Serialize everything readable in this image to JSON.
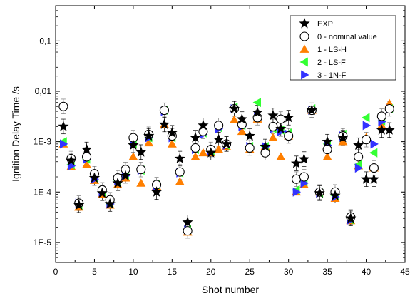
{
  "chart_data": {
    "type": "scatter",
    "xlabel": "Shot number",
    "ylabel": "Ignition Delay Time /s",
    "xlim": [
      0,
      45
    ],
    "ylim": [
      4e-06,
      0.5
    ],
    "yscale": "log",
    "xticks": [
      0,
      5,
      10,
      15,
      20,
      25,
      30,
      35,
      40,
      45
    ],
    "yticks": [
      {
        "value": 1e-05,
        "label": "1E-5"
      },
      {
        "value": 0.0001,
        "label": "1E-4"
      },
      {
        "value": 0.001,
        "label": "1E-3"
      },
      {
        "value": 0.01,
        "label": "0,01"
      },
      {
        "value": 0.1,
        "label": "0,1"
      }
    ],
    "grid": false,
    "legend_position": "top-right",
    "series": [
      {
        "name": "EXP",
        "marker": "star",
        "color": "#000000",
        "error_bars": true,
        "x": [
          1,
          2,
          3,
          4,
          5,
          6,
          7,
          8,
          9,
          10,
          11,
          12,
          13,
          14,
          15,
          16,
          17,
          18,
          19,
          20,
          21,
          22,
          23,
          24,
          25,
          26,
          27,
          28,
          29,
          30,
          31,
          32,
          33,
          34,
          35,
          36,
          37,
          38,
          39,
          40,
          41,
          42,
          43
        ],
        "y": [
          0.002,
          0.00042,
          5.5e-05,
          0.0007,
          0.00019,
          9.5e-05,
          5.8e-05,
          0.00015,
          0.00021,
          0.00085,
          0.00062,
          0.0013,
          0.0001,
          0.0022,
          0.0015,
          0.00046,
          2.5e-05,
          0.0012,
          0.0021,
          0.0006,
          0.0011,
          0.0009,
          0.0045,
          0.0028,
          0.0013,
          0.0038,
          0.0008,
          0.0033,
          0.0018,
          0.003,
          0.00037,
          0.00045,
          0.0042,
          9.5e-05,
          0.001,
          8.5e-05,
          0.0012,
          3e-05,
          0.00085,
          0.00018,
          0.00018,
          0.0017,
          0.0017
        ]
      },
      {
        "name": "0 - nominal value",
        "marker": "circle-open",
        "color": "#000000",
        "error_bars": true,
        "x": [
          1,
          2,
          3,
          4,
          5,
          6,
          7,
          8,
          9,
          10,
          11,
          12,
          13,
          14,
          15,
          16,
          17,
          18,
          19,
          20,
          21,
          22,
          23,
          24,
          25,
          26,
          27,
          28,
          29,
          30,
          31,
          32,
          33,
          34,
          35,
          36,
          37,
          38,
          39,
          40,
          41,
          42,
          43
        ],
        "y": [
          0.005,
          0.00046,
          6e-05,
          0.0005,
          0.00023,
          0.00011,
          7e-05,
          0.00019,
          0.00028,
          0.0012,
          0.00028,
          0.0014,
          0.00014,
          0.0042,
          0.0013,
          0.00025,
          1.7e-05,
          0.00075,
          0.0016,
          0.0007,
          0.0021,
          0.0009,
          0.0045,
          0.0022,
          0.00075,
          0.003,
          0.0006,
          0.002,
          0.0028,
          0.0013,
          0.00018,
          0.0002,
          0.0042,
          0.0001,
          0.0007,
          0.0001,
          0.0013,
          3.2e-05,
          0.0005,
          0.0011,
          0.0003,
          0.0032,
          0.0045
        ]
      },
      {
        "name": "1 - LS-H",
        "marker": "triangle-up",
        "color": "#ff7f00",
        "error_bars": false,
        "x": [
          1,
          2,
          3,
          4,
          5,
          6,
          7,
          8,
          9,
          10,
          11,
          12,
          13,
          14,
          15,
          16,
          17,
          18,
          19,
          20,
          21,
          22,
          23,
          24,
          25,
          26,
          27,
          28,
          29,
          30,
          31,
          32,
          33,
          34,
          35,
          36,
          37,
          38,
          39,
          40,
          41,
          42,
          43
        ],
        "y": [
          0.0009,
          0.00032,
          5e-05,
          0.00035,
          0.00017,
          9e-05,
          5.5e-05,
          0.00014,
          0.00019,
          0.0005,
          0.00015,
          0.00095,
          0.00013,
          0.0022,
          0.0009,
          0.00016,
          1.6e-05,
          0.0005,
          0.0006,
          0.0006,
          0.0007,
          0.0008,
          0.0027,
          0.0016,
          0.0007,
          0.0028,
          0.0008,
          0.0012,
          0.0005,
          0.0013,
          0.0001,
          0.00014,
          0.0042,
          0.0001,
          0.0005,
          7.5e-05,
          0.001,
          2.7e-05,
          0.00033,
          0.0012,
          0.0003,
          0.0021,
          0.0057
        ]
      },
      {
        "name": "2 - LS-F",
        "marker": "triangle-left",
        "color": "#33ff33",
        "error_bars": false,
        "x": [
          1,
          2,
          3,
          4,
          5,
          6,
          7,
          8,
          9,
          10,
          11,
          12,
          13,
          14,
          15,
          16,
          17,
          18,
          19,
          20,
          21,
          22,
          23,
          24,
          25,
          26,
          27,
          28,
          29,
          30,
          31,
          32,
          33,
          34,
          35,
          36,
          37,
          38,
          39,
          40,
          41,
          42,
          43
        ],
        "y": [
          0.001,
          0.00035,
          5.5e-05,
          0.00045,
          0.00019,
          0.0001,
          5.8e-05,
          0.00017,
          0.00022,
          0.0009,
          0.00027,
          0.0012,
          0.00014,
          0.0042,
          0.0012,
          0.00024,
          1.8e-05,
          0.0007,
          0.0015,
          0.00065,
          0.0019,
          0.00085,
          0.0048,
          0.0021,
          0.0008,
          0.006,
          0.0008,
          0.0018,
          0.0017,
          0.0015,
          0.00011,
          0.00016,
          0.0045,
          9.5e-05,
          0.0009,
          8.5e-05,
          0.0014,
          2.8e-05,
          0.00035,
          0.003,
          0.0006,
          0.0026,
          0.0045
        ]
      },
      {
        "name": "3 - 1N-F",
        "marker": "triangle-right",
        "color": "#3333ff",
        "error_bars": false,
        "x": [
          1,
          2,
          3,
          4,
          5,
          6,
          7,
          8,
          9,
          10,
          11,
          12,
          13,
          14,
          15,
          16,
          17,
          18,
          19,
          20,
          21,
          22,
          23,
          24,
          25,
          26,
          27,
          28,
          29,
          30,
          31,
          32,
          33,
          34,
          35,
          36,
          37,
          38,
          39,
          40,
          41,
          42,
          43
        ],
        "y": [
          0.0009,
          0.00033,
          6e-05,
          0.00045,
          0.00018,
          0.0001,
          5.8e-05,
          0.00017,
          0.00021,
          0.0009,
          0.00027,
          0.0012,
          0.00013,
          0.004,
          0.0012,
          0.00024,
          1.8e-05,
          0.0007,
          0.0014,
          0.00065,
          0.0018,
          0.00085,
          0.0045,
          0.002,
          0.0008,
          0.0032,
          0.0008,
          0.0018,
          0.0016,
          0.0014,
          0.0001,
          0.00015,
          0.0042,
          9.5e-05,
          0.00085,
          8e-05,
          0.0013,
          2.8e-05,
          0.0003,
          0.0021,
          0.0009,
          0.0025,
          0.0045
        ]
      }
    ]
  }
}
